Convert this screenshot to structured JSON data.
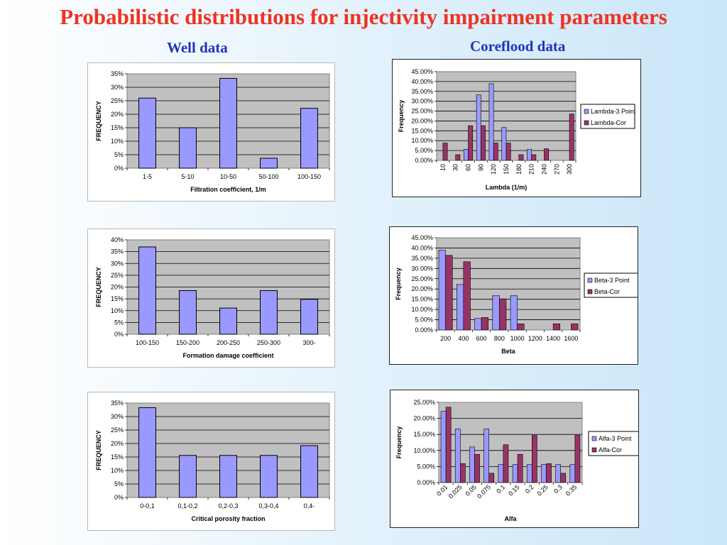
{
  "title": "Probabilistic distributions for injectivity impairment parameters",
  "subtitle_left": "Well data",
  "subtitle_right": "Coreflood data",
  "colors": {
    "bar_blue": "#9999ff",
    "bar_maroon": "#993366",
    "plot_bg": "#c0c0c0",
    "title": "#ee3322",
    "subtitle": "#2233bb"
  },
  "chart_data": [
    {
      "id": "well-filtration",
      "type": "bar",
      "categories": [
        "1-5",
        "5-10",
        "10-50",
        "50-100",
        "100-150"
      ],
      "values": [
        26,
        15,
        33.3,
        3.7,
        22.2
      ],
      "ylabel": "FREQUENCY",
      "xlabel": "Filtration coefficient, 1/m",
      "ylim": [
        0,
        35
      ],
      "yticks": [
        "0%",
        "5%",
        "10%",
        "15%",
        "20%",
        "25%",
        "30%",
        "35%"
      ],
      "grid": true,
      "legend": "none"
    },
    {
      "id": "well-formation",
      "type": "bar",
      "categories": [
        "100-150",
        "150-200",
        "200-250",
        "250-300",
        "300-"
      ],
      "values": [
        37,
        18.5,
        11.1,
        18.5,
        14.8
      ],
      "ylabel": "FREQUENCY",
      "xlabel": "Formation damage coefficient",
      "ylim": [
        0,
        40
      ],
      "yticks": [
        "0%",
        "5%",
        "10%",
        "15%",
        "20%",
        "25%",
        "30%",
        "35%",
        "40%"
      ],
      "grid": true,
      "legend": "none"
    },
    {
      "id": "well-porosity",
      "type": "bar",
      "categories": [
        "0-0,1",
        "0,1-0,2",
        "0,2-0,3",
        "0,3-0,4",
        "0,4-"
      ],
      "values": [
        33.3,
        15.6,
        15.6,
        15.6,
        19.2
      ],
      "ylabel": "FREQUENCY",
      "xlabel": "Critical porosity fraction",
      "ylim": [
        0,
        35
      ],
      "yticks": [
        "0%",
        "5%",
        "10%",
        "15%",
        "20%",
        "25%",
        "30%",
        "35%"
      ],
      "grid": true,
      "legend": "none"
    },
    {
      "id": "core-lambda",
      "type": "bar",
      "categories": [
        "10",
        "30",
        "60",
        "90",
        "120",
        "150",
        "180",
        "210",
        "240",
        "270",
        "300"
      ],
      "series": [
        {
          "name": "Lambda-3 Point",
          "values": [
            0,
            0,
            5.6,
            33.3,
            38.9,
            16.7,
            0,
            5.6,
            0,
            0,
            0
          ]
        },
        {
          "name": "Lambda-Cor",
          "values": [
            8.8,
            2.9,
            17.6,
            17.6,
            8.8,
            8.8,
            2.9,
            2.9,
            5.9,
            0,
            23.5
          ]
        }
      ],
      "ylabel": "Frequency",
      "xlabel": "Lambda (1/m)",
      "ylim": [
        0,
        45
      ],
      "yticks": [
        "0.00%",
        "5.00%",
        "10.00%",
        "15.00%",
        "20.00%",
        "25.00%",
        "30.00%",
        "35.00%",
        "40.00%",
        "45.00%"
      ],
      "grid": true,
      "legend": "right"
    },
    {
      "id": "core-beta",
      "type": "bar",
      "categories": [
        "200",
        "400",
        "600",
        "800",
        "1000",
        "1200",
        "1400",
        "1600"
      ],
      "series": [
        {
          "name": "Beta-3 Point",
          "values": [
            38.9,
            22.2,
            5.6,
            16.7,
            16.7,
            0,
            0,
            0
          ]
        },
        {
          "name": "Beta-Cor",
          "values": [
            36.4,
            33.3,
            6.1,
            15.2,
            3,
            0,
            3,
            3
          ]
        }
      ],
      "ylabel": "Frequency",
      "xlabel": "Beta",
      "ylim": [
        0,
        45
      ],
      "yticks": [
        "0.00%",
        "5.00%",
        "10.00%",
        "15.00%",
        "20.00%",
        "25.00%",
        "30.00%",
        "35.00%",
        "40.00%",
        "45.00%"
      ],
      "grid": true,
      "legend": "right"
    },
    {
      "id": "core-alfa",
      "type": "bar",
      "categories": [
        "0.01",
        "0.025",
        "0.05",
        "0.075",
        "0.1",
        "0.15",
        "0.2",
        "0.25",
        "0.3",
        "0.35"
      ],
      "series": [
        {
          "name": "Alfa-3 Point",
          "values": [
            22.2,
            16.7,
            11.1,
            16.7,
            5.6,
            5.6,
            5.6,
            5.6,
            5.6,
            5.6
          ]
        },
        {
          "name": "Alfa-Cor",
          "values": [
            23.5,
            5.9,
            8.8,
            2.9,
            11.8,
            8.8,
            14.7,
            5.9,
            2.9,
            14.7
          ]
        }
      ],
      "ylabel": "Frequency",
      "xlabel": "Alfa",
      "ylim": [
        0,
        25
      ],
      "yticks": [
        "0.00%",
        "5.00%",
        "10.00%",
        "15.00%",
        "20.00%",
        "25.00%"
      ],
      "grid": true,
      "legend": "right"
    }
  ]
}
